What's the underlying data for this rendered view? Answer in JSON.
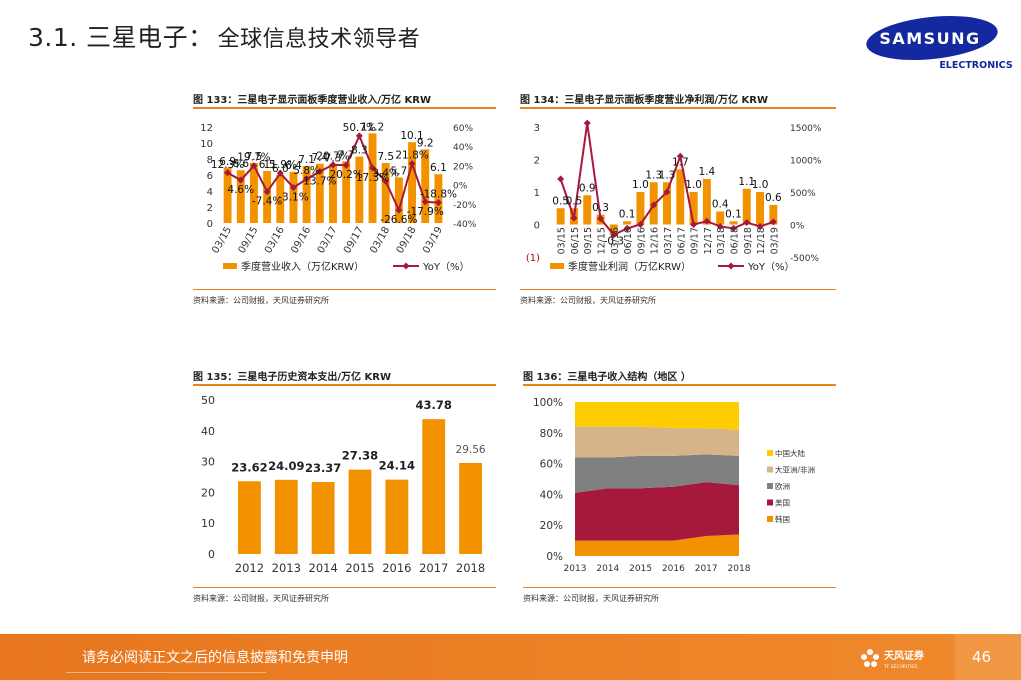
{
  "header": {
    "title": "3.1. 三星电子：",
    "subtitle": "全球信息技术领导者"
  },
  "logo": {
    "brand": "SAMSUNG",
    "sub": "ELECTRONICS",
    "color": "#1428a0"
  },
  "colors": {
    "orange": "#f39200",
    "red": "#a6193c",
    "grey": "#808080",
    "tan": "#d6b48a",
    "yellow": "#ffcc00",
    "accent": "#e8821e"
  },
  "footer": {
    "disclaimer": "请务必阅读正文之后的信息披露和免责申明",
    "brand": "天风证券",
    "brand_en": "TF SECURITIES",
    "page": "46"
  },
  "chart_data": [
    {
      "type": "bar",
      "title": "图 133：三星电子显示面板季度营业收入/万亿 KRW",
      "source": "资料来源：公司财报，天风证券研究所",
      "x_labels": [
        "03/15",
        "09/15",
        "03/16",
        "09/16",
        "03/17",
        "09/17",
        "03/18",
        "09/18",
        "03/19"
      ],
      "series": [
        {
          "name": "季度营业收入（万亿KRW）",
          "kind": "bar",
          "axis": "left",
          "values": [
            6.9,
            6.6,
            7.5,
            6.5,
            6.0,
            6.4,
            7.1,
            7.4,
            7.3,
            7.7,
            8.3,
            11.2,
            7.5,
            5.7,
            10.1,
            9.2,
            6.1
          ]
        },
        {
          "name": "YoY（%）",
          "kind": "line",
          "axis": "right",
          "values": [
            12.3,
            4.6,
            19.7,
            -7.4,
            11.9,
            -3.1,
            5.8,
            13.7,
            20.7,
            20.2,
            50.7,
            17.3,
            3.4,
            -26.6,
            21.8,
            -17.9,
            -18.8
          ]
        }
      ],
      "bar_labels": [
        "6.9",
        "6.6",
        "7.5",
        "6.5",
        "6.0",
        "6.4",
        "7.1",
        "7.4",
        "7.3",
        "7.7",
        "8.3",
        "11.2",
        "7.5",
        "5.7",
        "10.1",
        "9.2",
        "6.1"
      ],
      "line_labels": [
        "12.3%",
        "4.6%",
        "19.7%",
        "-7.4%",
        "11.9%",
        "-3.1%",
        "5.8%",
        "13.7%",
        "20.7%",
        "20.2%",
        "50.7%",
        "17.3%",
        "3.4%",
        "-26.6%",
        "21.8%",
        "-17.9%",
        "-18.8%"
      ],
      "y_left": {
        "range": [
          0,
          12
        ],
        "ticks": [
          "0",
          "2",
          "4",
          "6",
          "8",
          "10",
          "12"
        ]
      },
      "y_right": {
        "range": [
          -40,
          60
        ],
        "ticks": [
          "-40%",
          "-20%",
          "0%",
          "20%",
          "40%",
          "60%"
        ]
      },
      "legend": "bottom"
    },
    {
      "type": "bar",
      "title": "图 134：三星电子显示面板季度营业净利润/万亿 KRW",
      "source": "资料来源：公司财报，天风证券研究所",
      "x_labels": [
        "03/15",
        "06/15",
        "09/15",
        "12/15",
        "03/16",
        "06/16",
        "09/16",
        "12/16",
        "03/17",
        "06/17",
        "09/17",
        "12/17",
        "03/18",
        "06/18",
        "09/18",
        "12/18",
        "03/19"
      ],
      "series": [
        {
          "name": "季度营业利润（万亿KRW）",
          "kind": "bar",
          "axis": "left",
          "values": [
            0.5,
            0.5,
            0.9,
            0.3,
            -0.3,
            0.1,
            1.0,
            1.3,
            1.3,
            1.7,
            1.0,
            1.4,
            0.4,
            0.1,
            1.1,
            1.0,
            0.6
          ]
        },
        {
          "name": "YoY（%）",
          "kind": "line",
          "axis": "right",
          "values": [
            700,
            100,
            1560,
            90,
            -160,
            -60,
            0,
            300,
            500,
            1050,
            0,
            50,
            -30,
            -60,
            30,
            -30,
            40
          ]
        }
      ],
      "bar_labels": [
        "0.5",
        "0.5",
        "0.9",
        "0.3",
        "-0.3",
        "0.1",
        "1.0",
        "1.3",
        "1.3",
        "1.7",
        "1.0",
        "1.4",
        "0.4",
        "0.1",
        "1.1",
        "1.0",
        "0.6"
      ],
      "y_left": {
        "range": [
          -1,
          3
        ],
        "ticks": [
          "(1)",
          "0",
          "1",
          "2",
          "3"
        ]
      },
      "y_right": {
        "range": [
          -500,
          1500
        ],
        "ticks": [
          "-500%",
          "0%",
          "500%",
          "1000%",
          "1500%"
        ]
      },
      "legend": "bottom"
    },
    {
      "type": "bar",
      "title": "图 135：三星电子历史资本支出/万亿 KRW",
      "source": "资料来源：公司财报，天风证券研究所",
      "categories": [
        "2012",
        "2013",
        "2014",
        "2015",
        "2016",
        "2017",
        "2018"
      ],
      "values": [
        23.62,
        24.09,
        23.37,
        27.38,
        24.14,
        43.78,
        29.56
      ],
      "bar_labels": [
        "23.62",
        "24.09",
        "23.37",
        "27.38",
        "24.14",
        "43.78",
        "29.56"
      ],
      "ylim": [
        0,
        50
      ],
      "y_ticks": [
        "0",
        "10",
        "20",
        "30",
        "40",
        "50"
      ]
    },
    {
      "type": "area",
      "title": "图 136：三星电子收入结构（地区 ）",
      "source": "资料来源：公司财报，天风证券研究所",
      "x": [
        "2013",
        "2014",
        "2015",
        "2016",
        "2017",
        "2018"
      ],
      "stack": "percent",
      "series": [
        {
          "name": "韩国",
          "color": "#f39200",
          "values": [
            10,
            10,
            10,
            10,
            13,
            14
          ]
        },
        {
          "name": "美国",
          "color": "#a6193c",
          "values": [
            31,
            34,
            34,
            35,
            35,
            32
          ]
        },
        {
          "name": "欧洲",
          "color": "#808080",
          "values": [
            23,
            20,
            21,
            20,
            18,
            19
          ]
        },
        {
          "name": "大亚洲/非洲",
          "color": "#d6b48a",
          "values": [
            20,
            20,
            19,
            18,
            17,
            17
          ]
        },
        {
          "name": "中国大陆",
          "color": "#ffcc00",
          "values": [
            16,
            16,
            16,
            17,
            17,
            18
          ]
        }
      ],
      "y_ticks": [
        "0%",
        "20%",
        "40%",
        "60%",
        "80%",
        "100%"
      ],
      "legend": "right"
    }
  ]
}
